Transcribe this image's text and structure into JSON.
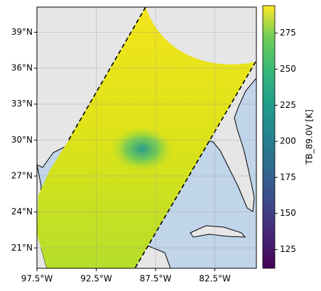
{
  "map": {
    "xlim": [
      -97.5,
      -79
    ],
    "ylim": [
      19.3,
      41.1
    ],
    "xticks": [
      {
        "value": -97.5,
        "label": "97.5°W"
      },
      {
        "value": -92.5,
        "label": "92.5°W"
      },
      {
        "value": -87.5,
        "label": "87.5°W"
      },
      {
        "value": -82.5,
        "label": "82.5°W"
      }
    ],
    "yticks": [
      {
        "value": 21,
        "label": "21°N"
      },
      {
        "value": 24,
        "label": "24°N"
      },
      {
        "value": 27,
        "label": "27°N"
      },
      {
        "value": 30,
        "label": "30°N"
      },
      {
        "value": 33,
        "label": "33°N"
      },
      {
        "value": 36,
        "label": "36°N"
      },
      {
        "value": 39,
        "label": "39°N"
      }
    ],
    "grid": true,
    "colorbar": {
      "label": "TB_89.0V [K]",
      "lim": [
        112,
        294
      ],
      "ticks": [
        125,
        150,
        175,
        200,
        225,
        250,
        275
      ]
    }
  }
}
